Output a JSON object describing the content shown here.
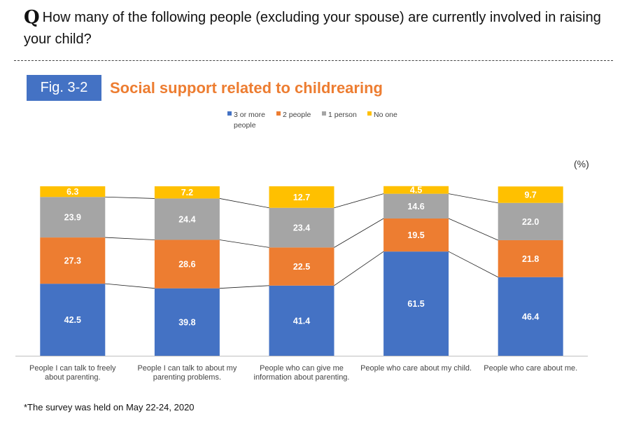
{
  "question": {
    "mark": "Q",
    "text": "How many of the following people (excluding your spouse) are  currently involved in raising your child?"
  },
  "figure": {
    "number": "Fig. 3-2",
    "title": "Social support related to childrearing"
  },
  "unit_label": "(%)",
  "footnote": "*The survey was held on May 22-24, 2020",
  "chart_data": {
    "type": "bar",
    "stacked": true,
    "normalized_percent": true,
    "categories": [
      "People I can talk to freely about parenting.",
      "People I can talk to about my parenting problems.",
      "People who can give me information about parenting.",
      "People who care about my child.",
      "People who care about me."
    ],
    "series": [
      {
        "name": "3 or more people",
        "color": "#4472c4",
        "values": [
          42.5,
          39.8,
          41.4,
          61.5,
          46.4
        ]
      },
      {
        "name": "2 people",
        "color": "#ed7d31",
        "values": [
          27.3,
          28.6,
          22.5,
          19.5,
          21.8
        ]
      },
      {
        "name": "1 person",
        "color": "#a5a5a5",
        "values": [
          23.9,
          24.4,
          23.4,
          14.6,
          22.0
        ]
      },
      {
        "name": "No one",
        "color": "#ffc000",
        "values": [
          6.3,
          7.2,
          12.7,
          4.5,
          9.7
        ]
      }
    ],
    "ylim": [
      0,
      100
    ],
    "legend_position": "top",
    "data_labels": true,
    "series_connector_lines": true,
    "grid": false
  }
}
